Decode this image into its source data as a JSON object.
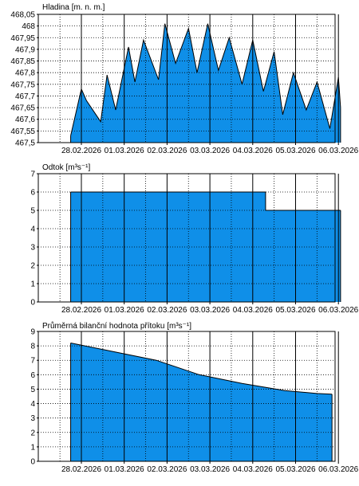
{
  "colors": {
    "fill": "#0f8fe8",
    "line": "#000000",
    "grid": "#000000",
    "background": "#ffffff"
  },
  "chart_data": [
    {
      "type": "area",
      "title": "Hladina [m. n. m.]",
      "x_tick_labels": [
        "28.02.2026",
        "01.03.2026",
        "02.03.2026",
        "03.03.2026",
        "04.03.2026",
        "05.03.2026",
        "06.03.2026"
      ],
      "y_tick_labels": [
        "467,5",
        "467,55",
        "467,6",
        "467,65",
        "467,7",
        "467,75",
        "467,8",
        "467,85",
        "467,9",
        "467,95",
        "468",
        "468,05"
      ],
      "ylim": [
        467.5,
        468.05
      ],
      "grid": true,
      "x": [
        -0.25,
        0.0,
        0.12,
        0.45,
        0.6,
        0.8,
        1.1,
        1.25,
        1.45,
        1.8,
        1.95,
        2.2,
        2.5,
        2.7,
        2.95,
        3.2,
        3.45,
        3.75,
        4.0,
        4.25,
        4.5,
        4.7,
        4.95,
        5.25,
        5.5,
        5.8,
        6.0
      ],
      "y": [
        467.53,
        467.73,
        467.68,
        467.59,
        467.79,
        467.64,
        467.91,
        467.76,
        467.94,
        467.77,
        468.01,
        467.84,
        467.99,
        467.8,
        468.01,
        467.81,
        467.95,
        467.75,
        467.94,
        467.72,
        467.89,
        467.62,
        467.8,
        467.64,
        467.76,
        467.56,
        467.78
      ],
      "x_end": 6.05,
      "y_end": 467.65
    },
    {
      "type": "area",
      "title": "Odtok [m³s⁻¹]",
      "x_tick_labels": [
        "28.02.2026",
        "01.03.2026",
        "02.03.2026",
        "03.03.2026",
        "04.03.2026",
        "05.03.2026",
        "06.03.2026"
      ],
      "y_tick_labels": [
        "0",
        "1",
        "2",
        "3",
        "4",
        "5",
        "6",
        "7"
      ],
      "ylim": [
        0,
        7
      ],
      "grid": true,
      "x": [
        -0.25,
        4.3,
        4.3,
        6.05
      ],
      "y": [
        6,
        6,
        5,
        5
      ]
    },
    {
      "type": "area",
      "title": "Průměrná bilanční hodnota přítoku [m³s⁻¹]",
      "x_tick_labels": [
        "28.02.2026",
        "01.03.2026",
        "02.03.2026",
        "03.03.2026",
        "04.03.2026",
        "05.03.2026",
        "06.03.2026"
      ],
      "y_tick_labels": [
        "0",
        "1",
        "2",
        "3",
        "4",
        "5",
        "6",
        "7",
        "8",
        "9"
      ],
      "ylim": [
        0,
        9
      ],
      "grid": true,
      "x": [
        -0.25,
        0.75,
        1.75,
        2.75,
        3.75,
        4.75,
        5.5,
        5.85
      ],
      "y": [
        8.2,
        7.6,
        7.0,
        6.0,
        5.4,
        4.9,
        4.7,
        4.65
      ]
    }
  ]
}
